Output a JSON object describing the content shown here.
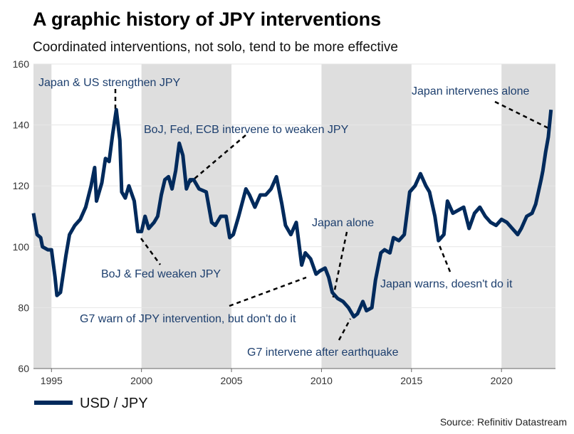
{
  "chart_data": {
    "type": "line",
    "title": "A graphic history of JPY interventions",
    "subtitle": "Coordinated interventions, not solo, tend to be more effective",
    "source": "Source: Refinitiv Datastream",
    "xlim": [
      1994,
      2023
    ],
    "xticks": [
      1995,
      2000,
      2005,
      2010,
      2015,
      2020
    ],
    "ylim": [
      60,
      160
    ],
    "yticks": [
      60,
      80,
      100,
      120,
      140,
      160
    ],
    "grid": true,
    "shaded_spans": [
      [
        1994,
        1995
      ],
      [
        2000,
        2005
      ],
      [
        2010,
        2015
      ],
      [
        2020,
        2023
      ]
    ],
    "annotations": [
      "Japan & US strengthen JPY",
      "BoJ, Fed, ECB intervene to weaken JPY",
      "BoJ & Fed weaken JPY",
      "G7 warn of JPY intervention, but don't do it",
      "Japan alone",
      "G7 intervene after earthquake",
      "Japan warns, doesn't do it",
      "Japan intervenes alone"
    ],
    "x": [
      1994.0,
      1994.2,
      1994.4,
      1994.5,
      1994.8,
      1995.0,
      1995.2,
      1995.3,
      1995.5,
      1995.8,
      1996.0,
      1996.3,
      1996.6,
      1996.9,
      1997.2,
      1997.4,
      1997.5,
      1997.8,
      1998.0,
      1998.2,
      1998.4,
      1998.6,
      1998.8,
      1998.9,
      1999.1,
      1999.3,
      1999.6,
      1999.8,
      2000.0,
      2000.2,
      2000.4,
      2000.7,
      2000.9,
      2001.1,
      2001.3,
      2001.5,
      2001.7,
      2001.9,
      2002.1,
      2002.3,
      2002.5,
      2002.7,
      2002.9,
      2003.2,
      2003.6,
      2003.9,
      2004.1,
      2004.4,
      2004.7,
      2004.9,
      2005.1,
      2005.4,
      2005.8,
      2006.0,
      2006.3,
      2006.6,
      2006.9,
      2007.2,
      2007.5,
      2007.8,
      2008.0,
      2008.3,
      2008.6,
      2008.9,
      2009.1,
      2009.4,
      2009.7,
      2009.9,
      2010.2,
      2010.4,
      2010.6,
      2010.9,
      2011.2,
      2011.5,
      2011.8,
      2012.0,
      2012.3,
      2012.5,
      2012.8,
      2013.0,
      2013.3,
      2013.5,
      2013.8,
      2014.0,
      2014.3,
      2014.6,
      2014.9,
      2015.2,
      2015.5,
      2015.8,
      2016.0,
      2016.3,
      2016.5,
      2016.8,
      2017.0,
      2017.3,
      2017.6,
      2017.9,
      2018.2,
      2018.5,
      2018.8,
      2019.1,
      2019.4,
      2019.7,
      2020.0,
      2020.3,
      2020.6,
      2020.9,
      2021.1,
      2021.4,
      2021.7,
      2021.9,
      2022.2,
      2022.3,
      2022.45,
      2022.6,
      2022.75
    ],
    "series": [
      {
        "name": "USD / JPY",
        "color": "#002a5c",
        "values": [
          111,
          104,
          103,
          100,
          99,
          99,
          90,
          84,
          85,
          97,
          104,
          107,
          109,
          113,
          120,
          126,
          115,
          121,
          129,
          128,
          137,
          145,
          135,
          118,
          116,
          120,
          115,
          105,
          105,
          110,
          106,
          108,
          110,
          117,
          122,
          123,
          119,
          125,
          134,
          130,
          119,
          122,
          122,
          119,
          118,
          108,
          107,
          110,
          110,
          103,
          104,
          110,
          119,
          117,
          113,
          117,
          117,
          119,
          123,
          114,
          107,
          104,
          108,
          94,
          98,
          96,
          91,
          92,
          93,
          90,
          85,
          83,
          82,
          80,
          77,
          78,
          82,
          79,
          80,
          89,
          98,
          99,
          98,
          103,
          102,
          104,
          118,
          120,
          124,
          120,
          118,
          110,
          102,
          104,
          115,
          111,
          112,
          113,
          106,
          111,
          113,
          110,
          108,
          107,
          109,
          108,
          106,
          104,
          106,
          110,
          111,
          114,
          122,
          125,
          131,
          136,
          145
        ]
      }
    ]
  }
}
